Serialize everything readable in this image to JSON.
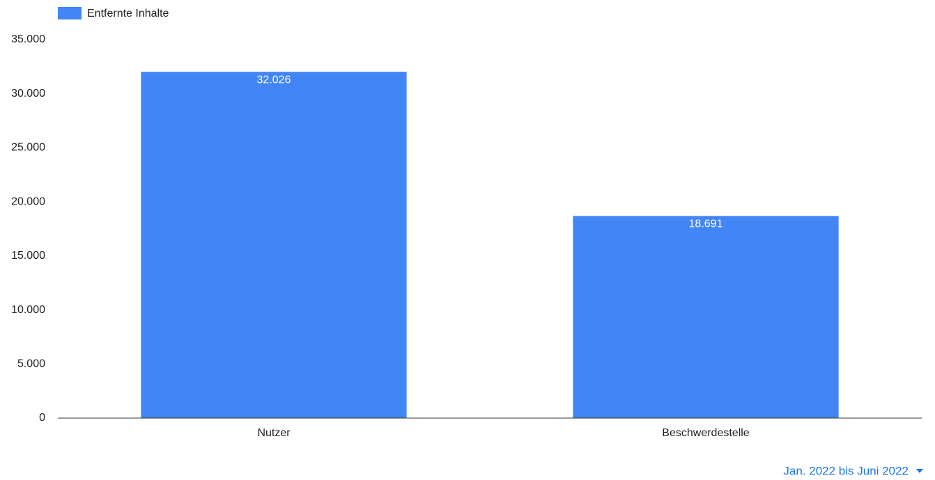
{
  "chart_data": {
    "type": "bar",
    "categories": [
      "Nutzer",
      "Beschwerdestelle"
    ],
    "series": [
      {
        "name": "Entfernte Inhalte",
        "color": "#4285f4",
        "values": [
          32026,
          18691
        ],
        "value_labels": [
          "32.026",
          "18.691"
        ]
      }
    ],
    "ylim": [
      0,
      35000
    ],
    "yticks": [
      0,
      {
        "value": 5000,
        "label": "5.000"
      },
      {
        "value": 10000,
        "label": "10.000"
      },
      {
        "value": 15000,
        "label": "15.000"
      },
      {
        "value": 20000,
        "label": "20.000"
      },
      {
        "value": 25000,
        "label": "25.000"
      },
      {
        "value": 30000,
        "label": "30.000"
      },
      {
        "value": 35000,
        "label": "35.000"
      }
    ],
    "grid": false,
    "legend": "top-left"
  },
  "controls": {
    "period": "Jan. 2022 bis Juni 2022"
  }
}
